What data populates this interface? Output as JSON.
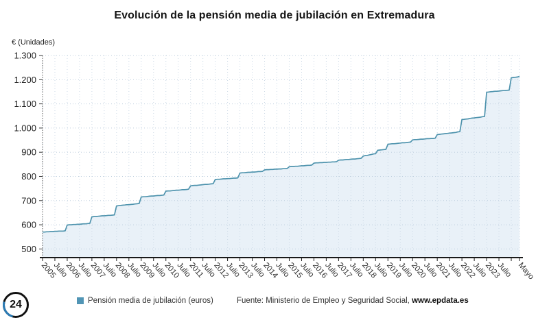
{
  "title": "Evolución de la pensión media de jubilación en Extremadura",
  "y_axis": {
    "unit": "€ (Unidades)"
  },
  "legend": {
    "label": "Pensión media de jubilación (euros)",
    "color": "#5195b5"
  },
  "source": {
    "prefix": "Fuente: Ministerio de Empleo y Seguridad Social, ",
    "link": "www.epdata.es"
  },
  "logo_text": "24",
  "chart_data": {
    "type": "area",
    "title": "Evolución de la pensión media de jubilación en Extremadura",
    "ylabel": "€ (Unidades)",
    "series_name": "Pensión media de jubilación (euros)",
    "frequency": "monthly",
    "x_start": "2005-01",
    "x_end": "2024-05",
    "ylim": [
      500,
      1300
    ],
    "ytick_step": 100,
    "grid": true,
    "legend_position": "bottom",
    "line_color": "#4e93ad",
    "fill_color": "#e9f1f8",
    "y_tick_labels": [
      "500",
      "600",
      "700",
      "800",
      "900",
      "1.000",
      "1.100",
      "1.200",
      "1.300"
    ],
    "tick_positions": [
      0,
      6,
      12,
      18,
      24,
      30,
      36,
      42,
      48,
      54,
      60,
      66,
      72,
      78,
      84,
      90,
      96,
      102,
      108,
      114,
      120,
      126,
      132,
      138,
      144,
      150,
      156,
      162,
      168,
      174,
      180,
      186,
      192,
      198,
      204,
      210,
      216,
      222,
      232
    ],
    "tick_labels": [
      "2005",
      "Julio",
      "2006",
      "Julio",
      "2007",
      "Julio",
      "2008",
      "Julio",
      "2009",
      "Julio",
      "2010",
      "Julio",
      "2011",
      "Julio",
      "2012",
      "Julio",
      "2013",
      "Julio",
      "2014",
      "Julio",
      "2015",
      "Julio",
      "2016",
      "Julio",
      "2017",
      "Julio",
      "2018",
      "Julio",
      "2019",
      "Julio",
      "2020",
      "Julio",
      "2021",
      "Julio",
      "2022",
      "Julio",
      "2023",
      "Julio",
      "Mayo"
    ],
    "values": [
      570,
      570,
      571,
      571,
      572,
      572,
      573,
      573,
      574,
      574,
      574,
      575,
      599,
      600,
      600,
      601,
      601,
      602,
      602,
      603,
      604,
      604,
      605,
      606,
      633,
      634,
      634,
      635,
      636,
      637,
      637,
      638,
      639,
      639,
      640,
      641,
      678,
      679,
      680,
      681,
      682,
      683,
      683,
      684,
      685,
      686,
      687,
      688,
      715,
      716,
      716,
      717,
      718,
      719,
      719,
      720,
      721,
      721,
      722,
      723,
      739,
      740,
      740,
      741,
      742,
      743,
      743,
      744,
      745,
      745,
      746,
      747,
      761,
      762,
      763,
      763,
      764,
      765,
      766,
      767,
      767,
      768,
      769,
      770,
      787,
      788,
      788,
      789,
      790,
      790,
      791,
      791,
      792,
      793,
      793,
      794,
      814,
      815,
      815,
      816,
      817,
      817,
      818,
      818,
      819,
      820,
      820,
      821,
      827,
      828,
      828,
      829,
      829,
      830,
      830,
      831,
      831,
      832,
      832,
      833,
      840,
      841,
      841,
      842,
      842,
      843,
      844,
      844,
      845,
      846,
      846,
      847,
      855,
      856,
      856,
      857,
      857,
      858,
      858,
      859,
      859,
      860,
      860,
      861,
      867,
      868,
      868,
      869,
      870,
      870,
      871,
      872,
      872,
      873,
      874,
      875,
      884,
      886,
      887,
      889,
      891,
      893,
      894,
      908,
      909,
      910,
      911,
      912,
      933,
      934,
      935,
      935,
      936,
      937,
      938,
      939,
      939,
      940,
      941,
      942,
      951,
      952,
      952,
      953,
      954,
      954,
      955,
      956,
      956,
      957,
      957,
      958,
      973,
      974,
      975,
      976,
      977,
      978,
      979,
      980,
      981,
      982,
      984,
      985,
      1035,
      1036,
      1037,
      1038,
      1040,
      1041,
      1042,
      1043,
      1044,
      1045,
      1047,
      1048,
      1148,
      1149,
      1150,
      1151,
      1152,
      1152,
      1153,
      1154,
      1155,
      1155,
      1156,
      1157,
      1208,
      1209,
      1210,
      1211,
      1214
    ]
  }
}
